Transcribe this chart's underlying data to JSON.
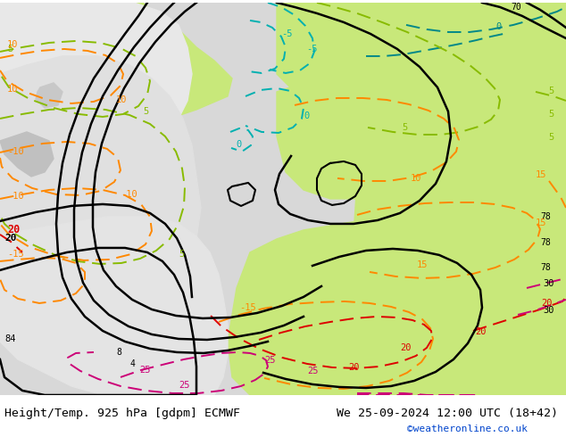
{
  "title_left": "Height/Temp. 925 hPa [gdpm] ECMWF",
  "title_right": "We 25-09-2024 12:00 UTC (18+42)",
  "credit": "©weatheronline.co.uk",
  "title_fontsize": 9.5,
  "credit_fontsize": 8,
  "fig_width": 6.34,
  "fig_height": 4.9,
  "dpi": 100,
  "bg_gray": "#d8d8d8",
  "bg_green": "#c8e87a",
  "bg_white": "#f0f0f0",
  "land_gray": "#b8b8b8",
  "color_black": "#000000",
  "color_cyan": "#00b0b0",
  "color_teal": "#008888",
  "color_green": "#88bb00",
  "color_orange": "#ff8800",
  "color_red": "#dd0000",
  "color_magenta": "#cc0077",
  "color_credit": "#0044cc"
}
